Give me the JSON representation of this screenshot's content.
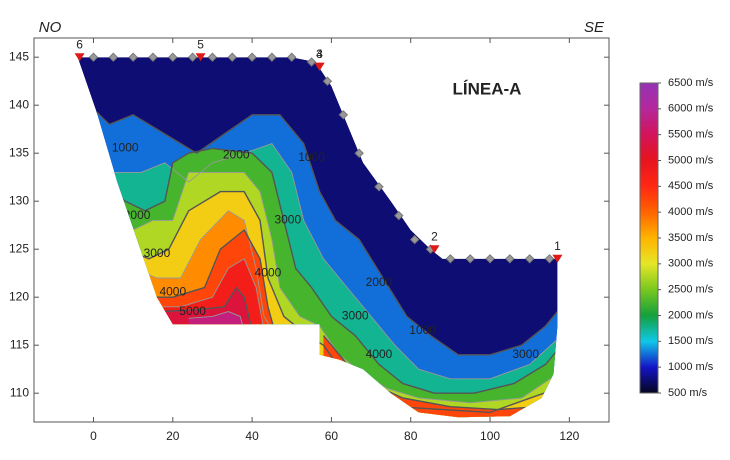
{
  "chart_data": {
    "type": "contour",
    "title": "LÍNEA-A",
    "annotations": {
      "left": "NO",
      "right": "SE"
    },
    "xlim": [
      -15,
      130
    ],
    "ylim": [
      107,
      147
    ],
    "xticks": [
      0,
      20,
      40,
      60,
      80,
      100,
      120
    ],
    "yticks": [
      110,
      115,
      120,
      125,
      130,
      135,
      140,
      145
    ],
    "colorbar": {
      "lim": [
        500,
        6500
      ],
      "ticks": [
        {
          "value": 500,
          "label": "500 m/s"
        },
        {
          "value": 1000,
          "label": "1000 m/s"
        },
        {
          "value": 1500,
          "label": "1500 m/s"
        },
        {
          "value": 2000,
          "label": "2000 m/s"
        },
        {
          "value": 2500,
          "label": "2500 m/s"
        },
        {
          "value": 3000,
          "label": "3000 m/s"
        },
        {
          "value": 3500,
          "label": "3500 m/s"
        },
        {
          "value": 4000,
          "label": "4000 m/s"
        },
        {
          "value": 4500,
          "label": "4500 m/s"
        },
        {
          "value": 5000,
          "label": "5000 m/s"
        },
        {
          "value": 5500,
          "label": "5500 m/s"
        },
        {
          "value": 6000,
          "label": "6000 m/s"
        },
        {
          "value": 6500,
          "label": "6500 m/s"
        }
      ],
      "stops": [
        [
          500,
          "#05051e"
        ],
        [
          1000,
          "#1414c8"
        ],
        [
          1500,
          "#10c8e8"
        ],
        [
          2000,
          "#14a03c"
        ],
        [
          2500,
          "#78c81e"
        ],
        [
          3000,
          "#e6e628"
        ],
        [
          3500,
          "#ffb400"
        ],
        [
          4000,
          "#ff6400"
        ],
        [
          4500,
          "#ff2814"
        ],
        [
          5000,
          "#e6141e"
        ],
        [
          5500,
          "#d2145a"
        ],
        [
          6000,
          "#b4289b"
        ],
        [
          6500,
          "#9632b4"
        ]
      ]
    },
    "model_outline": [
      [
        -4,
        145
      ],
      [
        50,
        145
      ],
      [
        56,
        144.5
      ],
      [
        60,
        142
      ],
      [
        64,
        138
      ],
      [
        68,
        134
      ],
      [
        75,
        130
      ],
      [
        80,
        127
      ],
      [
        85,
        125
      ],
      [
        88,
        124
      ],
      [
        117,
        124
      ],
      [
        117,
        117
      ],
      [
        116,
        112
      ],
      [
        113,
        109.5
      ],
      [
        105,
        107.6
      ],
      [
        92,
        107.5
      ],
      [
        82,
        108
      ],
      [
        75,
        110
      ],
      [
        68,
        112.5
      ],
      [
        62,
        113.5
      ],
      [
        57,
        114
      ],
      [
        57,
        117.2
      ],
      [
        20,
        117.2
      ],
      [
        16,
        120
      ],
      [
        11,
        126
      ],
      [
        6,
        132
      ],
      [
        1,
        139
      ],
      [
        -4,
        145
      ]
    ],
    "contours": [
      {
        "level": 1000,
        "points": [
          [
            -1,
            140
          ],
          [
            4,
            138
          ],
          [
            10,
            139
          ],
          [
            18,
            137
          ],
          [
            26,
            135
          ],
          [
            33,
            137
          ],
          [
            40,
            139
          ],
          [
            47,
            139
          ],
          [
            53,
            136
          ],
          [
            57,
            131
          ],
          [
            61,
            128
          ],
          [
            67,
            126
          ],
          [
            73,
            122
          ],
          [
            79,
            118
          ],
          [
            85,
            116
          ],
          [
            92,
            114
          ],
          [
            100,
            114
          ],
          [
            108,
            115
          ],
          [
            114,
            117
          ],
          [
            118,
            119
          ]
        ]
      },
      {
        "level": 1500,
        "points": [
          [
            0,
            136
          ],
          [
            5,
            133
          ],
          [
            12,
            133
          ],
          [
            18,
            134
          ],
          [
            24,
            132
          ],
          [
            30,
            134
          ],
          [
            38,
            135
          ],
          [
            45,
            136
          ],
          [
            50,
            133
          ],
          [
            53,
            128
          ],
          [
            58,
            124
          ],
          [
            64,
            121
          ],
          [
            70,
            118
          ],
          [
            76,
            115
          ],
          [
            82,
            112.5
          ],
          [
            90,
            111.5
          ],
          [
            100,
            111.5
          ],
          [
            110,
            113
          ],
          [
            118,
            116
          ]
        ]
      },
      {
        "level": 2000,
        "points": [
          [
            2,
            132
          ],
          [
            8,
            130
          ],
          [
            13,
            129
          ],
          [
            18,
            130
          ],
          [
            20,
            134
          ],
          [
            24,
            135
          ],
          [
            30,
            135.5
          ],
          [
            40,
            135
          ],
          [
            45,
            133
          ],
          [
            48,
            128
          ],
          [
            51,
            123
          ],
          [
            55,
            121
          ],
          [
            60,
            118
          ],
          [
            66,
            116
          ],
          [
            72,
            113
          ],
          [
            78,
            111
          ],
          [
            86,
            110
          ],
          [
            96,
            110
          ],
          [
            106,
            111
          ],
          [
            114,
            113
          ],
          [
            118,
            115
          ]
        ]
      },
      {
        "level": 2500,
        "points": [
          [
            4,
            128
          ],
          [
            10,
            127
          ],
          [
            15,
            128
          ],
          [
            20,
            128
          ],
          [
            24,
            133
          ],
          [
            30,
            133
          ],
          [
            38,
            133
          ],
          [
            42,
            131
          ],
          [
            45,
            126
          ],
          [
            47,
            121
          ],
          [
            52,
            118
          ],
          [
            57,
            117
          ],
          [
            62,
            114
          ],
          [
            68,
            112
          ],
          [
            74,
            110.5
          ],
          [
            82,
            109.5
          ],
          [
            95,
            109
          ],
          [
            108,
            109.5
          ],
          [
            117,
            112
          ]
        ]
      },
      {
        "level": 3000,
        "points": [
          [
            8,
            125
          ],
          [
            14,
            124
          ],
          [
            19,
            125
          ],
          [
            24,
            129
          ],
          [
            32,
            131
          ],
          [
            38,
            131
          ],
          [
            42,
            128
          ],
          [
            44,
            122
          ],
          [
            48,
            118
          ],
          [
            54,
            116
          ],
          [
            58,
            115
          ],
          [
            64,
            111.5
          ],
          [
            70,
            110.5
          ],
          [
            80,
            108.5
          ],
          [
            100,
            108
          ],
          [
            117,
            110.5
          ]
        ]
      },
      {
        "level": 3500,
        "points": [
          [
            10,
            123
          ],
          [
            16,
            122
          ],
          [
            22,
            122
          ],
          [
            27,
            126
          ],
          [
            34,
            129
          ],
          [
            38,
            128
          ],
          [
            41,
            123
          ],
          [
            43,
            118
          ],
          [
            46,
            116
          ]
        ]
      },
      {
        "level": 4000,
        "points": [
          [
            12,
            120
          ],
          [
            20,
            120
          ],
          [
            28,
            121
          ],
          [
            32,
            125
          ],
          [
            38,
            127
          ],
          [
            42,
            124
          ],
          [
            44,
            119
          ],
          [
            46,
            116
          ]
        ]
      },
      {
        "level": 4000,
        "points": [
          [
            58,
            116
          ],
          [
            64,
            113
          ],
          [
            70,
            111
          ],
          [
            78,
            109.5
          ],
          [
            90,
            108.6
          ],
          [
            102,
            108.3
          ],
          [
            112,
            108.6
          ],
          [
            118,
            110
          ]
        ]
      },
      {
        "level": 4500,
        "points": [
          [
            14,
            119
          ],
          [
            22,
            119
          ],
          [
            30,
            120
          ],
          [
            34,
            123
          ],
          [
            38,
            124
          ],
          [
            41,
            121
          ],
          [
            43,
            116.5
          ]
        ]
      },
      {
        "level": 5000,
        "points": [
          [
            17,
            118.5
          ],
          [
            26,
            118.7
          ],
          [
            33,
            119
          ],
          [
            36,
            121
          ],
          [
            38,
            120
          ],
          [
            40,
            116.5
          ]
        ]
      },
      {
        "level": 5500,
        "points": [
          [
            24,
            117.8
          ],
          [
            30,
            118
          ],
          [
            34,
            118.5
          ],
          [
            37,
            118
          ],
          [
            38,
            116.5
          ]
        ]
      }
    ],
    "contour_labels": [
      {
        "value": 1000,
        "x": 8,
        "y": 135.5
      },
      {
        "value": 1000,
        "x": 55,
        "y": 134.5
      },
      {
        "value": 1000,
        "x": 83,
        "y": 116.5
      },
      {
        "value": 2000,
        "x": 11,
        "y": 128.5
      },
      {
        "value": 2000,
        "x": 36,
        "y": 134.8
      },
      {
        "value": 2000,
        "x": 72,
        "y": 121.5
      },
      {
        "value": 3000,
        "x": 16,
        "y": 124.5
      },
      {
        "value": 3000,
        "x": 49,
        "y": 128
      },
      {
        "value": 3000,
        "x": 66,
        "y": 118
      },
      {
        "value": 3000,
        "x": 109,
        "y": 114
      },
      {
        "value": 4000,
        "x": 44,
        "y": 122.5
      },
      {
        "value": 4000,
        "x": 20,
        "y": 120.5
      },
      {
        "value": 4000,
        "x": 72,
        "y": 114
      },
      {
        "value": 5000,
        "x": 25,
        "y": 118.5
      }
    ],
    "shots": [
      {
        "label": "6",
        "x": -3.5,
        "y": 145
      },
      {
        "label": "5",
        "x": 27,
        "y": 145
      },
      {
        "label": "4",
        "x": 57,
        "y": 144
      },
      {
        "label": "3",
        "x": 57,
        "y": 144
      },
      {
        "label": "2",
        "x": 86,
        "y": 125
      },
      {
        "label": "1",
        "x": 117,
        "y": 124
      }
    ],
    "geophones": {
      "x": [
        0,
        5,
        10,
        15,
        20,
        25,
        30,
        35,
        40,
        45,
        50,
        55,
        59,
        63,
        67,
        72,
        77,
        81,
        85,
        90,
        95,
        100,
        105,
        110,
        115
      ],
      "y": [
        145,
        145,
        145,
        145,
        145,
        145,
        145,
        145,
        145,
        145,
        145,
        144.5,
        142.5,
        139,
        135,
        131.5,
        128.5,
        126,
        125,
        124,
        124,
        124,
        124,
        124,
        124
      ]
    }
  }
}
